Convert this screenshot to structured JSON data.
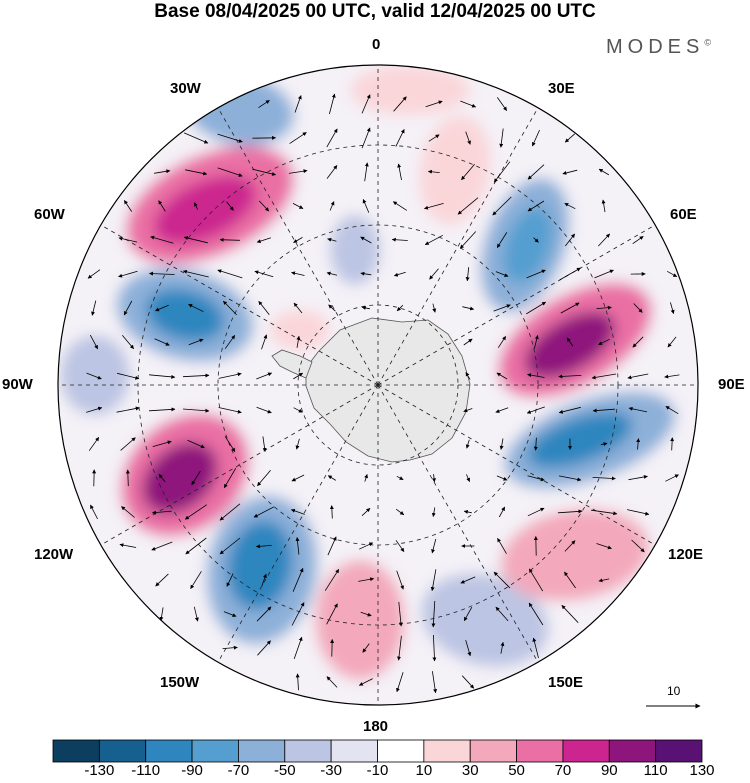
{
  "title": "Base 08/04/2025 00 UTC, valid 12/04/2025 00 UTC",
  "brand": "MODES",
  "brand_mark": "©",
  "longitude_labels": {
    "lon_0": "0",
    "lon_30e": "30E",
    "lon_60e": "60E",
    "lon_90e": "90E",
    "lon_120e": "120E",
    "lon_150e": "150E",
    "lon_180": "180",
    "lon_150w": "150W",
    "lon_120w": "120W",
    "lon_90w": "90W",
    "lon_60w": "60W",
    "lon_30w": "30W"
  },
  "vector_scale": "10",
  "colorbar": {
    "ticks": [
      "-130",
      "-110",
      "-90",
      "-70",
      "-50",
      "-30",
      "-10",
      "10",
      "30",
      "50",
      "70",
      "90",
      "110",
      "130"
    ],
    "colors": [
      "#0c3e5f",
      "#15608f",
      "#2f86bf",
      "#559fd0",
      "#8db0d9",
      "#bcc5e3",
      "#e4e3f1",
      "#ffffff",
      "#fad6d9",
      "#f3a9bb",
      "#ea6fa4",
      "#cc258f",
      "#8e157c",
      "#5a1174"
    ]
  }
}
